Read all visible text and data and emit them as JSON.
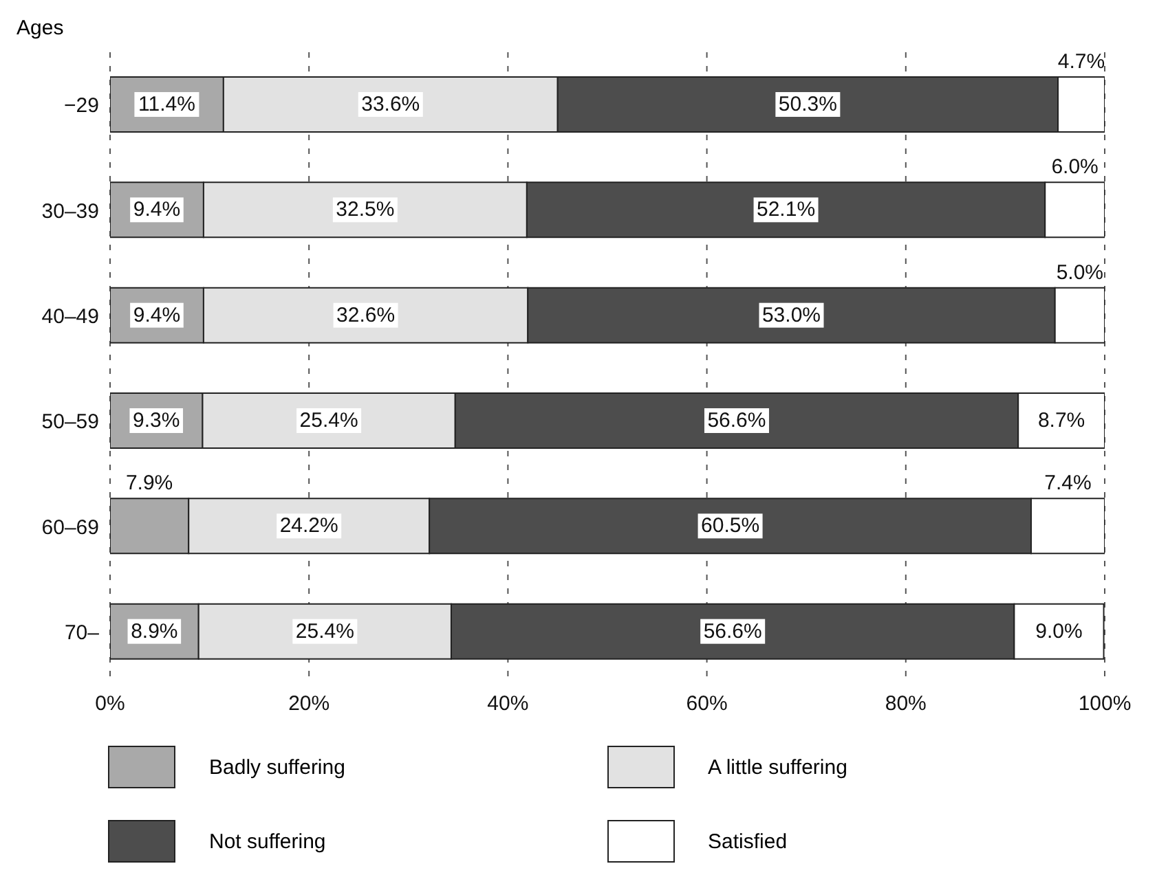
{
  "chart_data": {
    "type": "bar",
    "orientation": "horizontal",
    "stacked": true,
    "ylabel": "Ages",
    "categories": [
      "−29",
      "30–39",
      "40–49",
      "50–59",
      "60–69",
      "70–"
    ],
    "series": [
      {
        "name": "Badly suffering",
        "color": "#a9a9a9",
        "values": [
          11.4,
          9.4,
          9.4,
          9.3,
          7.9,
          8.9
        ],
        "value_labels": [
          "11.4%",
          "9.4%",
          "9.4%",
          "9.3%",
          "7.9%",
          "8.9%"
        ]
      },
      {
        "name": "A little suffering",
        "color": "#e2e2e2",
        "values": [
          33.6,
          32.5,
          32.6,
          25.4,
          24.2,
          25.4
        ],
        "value_labels": [
          "33.6%",
          "32.5%",
          "32.6%",
          "25.4%",
          "24.2%",
          "25.4%"
        ]
      },
      {
        "name": "Not suffering",
        "color": "#4d4d4d",
        "values": [
          50.3,
          52.1,
          53.0,
          56.6,
          60.5,
          56.6
        ],
        "value_labels": [
          "50.3%",
          "52.1%",
          "53.0%",
          "56.6%",
          "60.5%",
          "56.6%"
        ]
      },
      {
        "name": "Satisfied",
        "color": "#ffffff",
        "values": [
          4.7,
          6.0,
          5.0,
          8.7,
          7.4,
          9.0
        ],
        "value_labels": [
          "4.7%",
          "6.0%",
          "5.0%",
          "8.7%",
          "7.4%",
          "9.0%"
        ]
      }
    ],
    "xlim": [
      0,
      100
    ],
    "xticks": [
      {
        "value": 0,
        "label": "0%"
      },
      {
        "value": 20,
        "label": "20%"
      },
      {
        "value": 40,
        "label": "40%"
      },
      {
        "value": 60,
        "label": "60%"
      },
      {
        "value": 80,
        "label": "80%"
      },
      {
        "value": 100,
        "label": "100%"
      }
    ],
    "grid": "x",
    "legend": "bottom"
  }
}
